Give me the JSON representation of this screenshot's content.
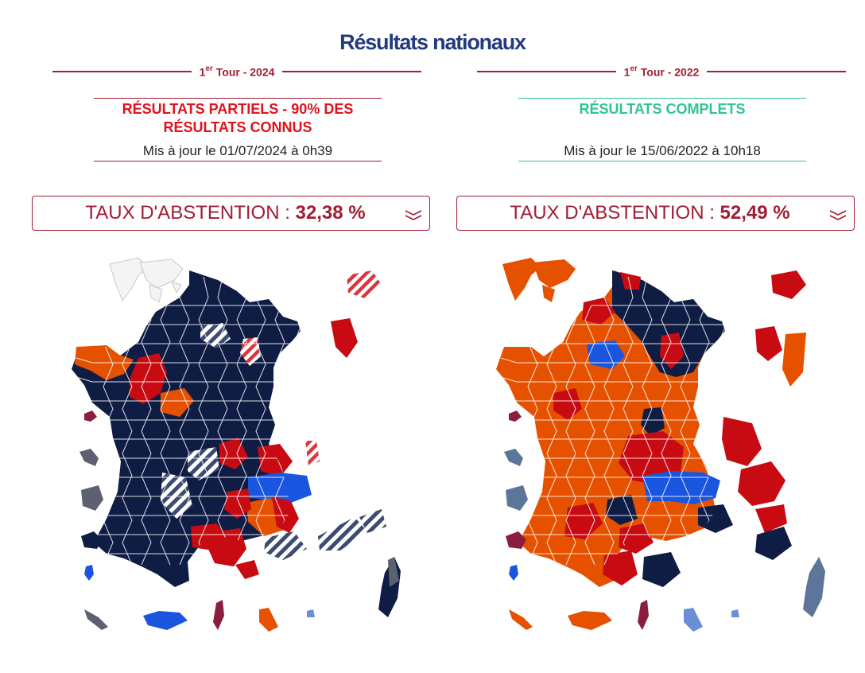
{
  "page": {
    "title": "Résultats nationaux"
  },
  "colors": {
    "navy": "#0f1d45",
    "red": "#c80a12",
    "orange": "#e65100",
    "blue": "#1a55e0",
    "maroon": "#8b1e3f",
    "grey": "#5c6170",
    "accent": "#a11d33",
    "complete": "#2fc48f"
  },
  "left": {
    "tour_prefix": "1",
    "tour_sup": "er",
    "tour_suffix": " Tour - 2024",
    "status": "RÉSULTATS PARTIELS  - 90% DES RÉSULTATS CONNUS",
    "status_color": "#e0121b",
    "status_border": "#a11d33",
    "updated": "Mis à jour le 01/07/2024 à 0h39",
    "abstention_label": "TAUX D'ABSTENTION : ",
    "abstention_value": "32,38 %",
    "map_primary_color": "#0f1d45"
  },
  "right": {
    "tour_prefix": "1",
    "tour_sup": "er",
    "tour_suffix": " Tour - 2022",
    "status": "RÉSULTATS COMPLETS",
    "status_color": "#2fc48f",
    "status_border": "#2fc48f",
    "updated": "Mis à jour le 15/06/2022 à 10h18",
    "abstention_label": "TAUX D'ABSTENTION : ",
    "abstention_value": "52,49 %",
    "map_primary_color": "#e65100"
  }
}
